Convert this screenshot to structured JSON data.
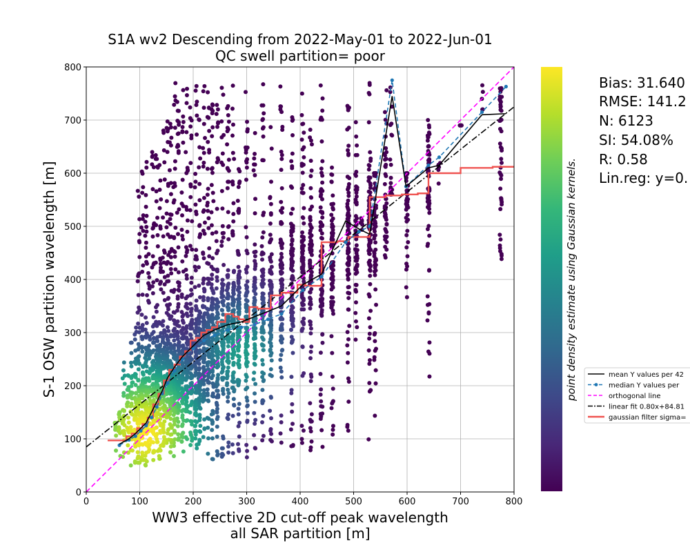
{
  "chart_data": {
    "type": "scatter",
    "title": "S1A wv2 Descending from 2022-May-01 to 2022-Jun-01",
    "subtitle": "QC swell partition= poor",
    "xlabel": "WW3 effective 2D cut-off peak wavelength",
    "xlabel2": "all SAR partition [m]",
    "ylabel": "S-1 OSW partition wavelength [m]",
    "xlim": [
      0,
      800
    ],
    "ylim": [
      0,
      800
    ],
    "xticks": [
      "0",
      "100",
      "200",
      "300",
      "400",
      "500",
      "600",
      "700",
      "800"
    ],
    "yticks": [
      "0",
      "100",
      "200",
      "300",
      "400",
      "500",
      "600",
      "700",
      "800"
    ],
    "grid": true,
    "colorbar_label": "point density estimate using Gaussian kernels.",
    "colormap": [
      "#440154",
      "#482878",
      "#3e4989",
      "#31688e",
      "#26828e",
      "#1f9e89",
      "#35b779",
      "#6ece58",
      "#b5de2b",
      "#fde725"
    ],
    "stats": [
      "Bias: 31.640",
      "RMSE: 141.2",
      "N: 6123",
      "SI: 54.08%",
      "R: 0.58",
      "Lin.reg: y=0."
    ],
    "legend_position": "right-outside",
    "legend": [
      {
        "label": "mean Y values per 42",
        "color": "#000000",
        "style": "solid"
      },
      {
        "label": "median Y values per",
        "color": "#1f77b4",
        "style": "dashed-marker"
      },
      {
        "label": "orthogonal line",
        "color": "#ff00ff",
        "style": "dashed"
      },
      {
        "label": "linear fit 0.80x+84.81",
        "color": "#000000",
        "style": "dashdot"
      },
      {
        "label": "gaussian filter sigma=",
        "color": "#ef5350",
        "style": "solid-thick"
      }
    ],
    "series": [
      {
        "name": "mean Y values per 42",
        "x": [
          62,
          80,
          92,
          102,
          112,
          122,
          132,
          142,
          152,
          165,
          180,
          200,
          220,
          240,
          265,
          290,
          315,
          340,
          365,
          405,
          440,
          485,
          510,
          530,
          572,
          598,
          640,
          660,
          740,
          785
        ],
        "y": [
          90,
          100,
          110,
          120,
          130,
          150,
          170,
          190,
          215,
          235,
          255,
          275,
          295,
          305,
          315,
          320,
          330,
          340,
          350,
          390,
          410,
          510,
          495,
          485,
          745,
          575,
          610,
          615,
          710,
          712
        ]
      },
      {
        "name": "median Y values per",
        "x": [
          62,
          80,
          92,
          102,
          112,
          122,
          132,
          142,
          152,
          165,
          180,
          200,
          220,
          240,
          265,
          290,
          315,
          340,
          365,
          405,
          440,
          485,
          510,
          530,
          572,
          598,
          640,
          660,
          740,
          785
        ],
        "y": [
          88,
          98,
          105,
          115,
          125,
          140,
          160,
          185,
          205,
          228,
          250,
          270,
          285,
          295,
          305,
          310,
          315,
          325,
          335,
          380,
          405,
          470,
          490,
          500,
          775,
          575,
          615,
          630,
          715,
          763
        ]
      },
      {
        "name": "gaussian filter sigma=",
        "x": [
          40,
          65,
          75,
          85,
          95,
          105,
          115,
          125,
          135,
          145,
          155,
          165,
          175,
          185,
          195,
          205,
          215,
          225,
          235,
          245,
          260,
          275,
          285,
          295,
          305,
          320,
          345,
          365,
          395,
          410,
          440,
          470,
          490,
          530,
          560,
          590,
          620,
          640,
          700,
          760,
          800
        ],
        "y": [
          97,
          97,
          105,
          110,
          120,
          128,
          140,
          165,
          185,
          210,
          230,
          240,
          255,
          265,
          285,
          290,
          300,
          305,
          310,
          320,
          335,
          330,
          325,
          320,
          348,
          345,
          370,
          375,
          390,
          388,
          470,
          472,
          480,
          555,
          558,
          560,
          562,
          600,
          610,
          612,
          613
        ]
      },
      {
        "name": "linear fit 0.80x+84.81",
        "x": [
          0,
          800
        ],
        "y": [
          84.81,
          724.81
        ]
      },
      {
        "name": "orthogonal line",
        "x": [
          0,
          800
        ],
        "y": [
          0,
          800
        ]
      }
    ],
    "scatter_density": {
      "column_x": [
        55,
        62,
        70,
        78,
        85,
        92,
        98,
        105,
        112,
        118,
        125,
        132,
        138,
        145,
        152,
        158,
        165,
        172,
        180,
        188,
        196,
        205,
        212,
        220,
        228,
        236,
        245,
        255,
        265,
        275,
        285,
        300,
        315,
        330,
        345,
        365,
        385,
        405,
        420,
        440,
        460,
        490,
        505,
        515,
        530,
        540,
        560,
        570,
        600,
        640,
        660,
        700,
        740,
        775
      ],
      "column_ymax": [
        130,
        150,
        260,
        230,
        290,
        310,
        600,
        620,
        640,
        470,
        640,
        640,
        620,
        700,
        700,
        720,
        770,
        760,
        770,
        770,
        730,
        770,
        710,
        770,
        760,
        730,
        770,
        770,
        770,
        770,
        750,
        770,
        720,
        770,
        700,
        770,
        760,
        750,
        690,
        770,
        680,
        770,
        700,
        520,
        770,
        600,
        770,
        770,
        600,
        700,
        620,
        690,
        770,
        760
      ],
      "column_ymin": [
        55,
        60,
        60,
        70,
        50,
        55,
        55,
        60,
        50,
        55,
        60,
        55,
        60,
        60,
        65,
        60,
        60,
        65,
        70,
        75,
        80,
        50,
        80,
        75,
        70,
        60,
        60,
        60,
        70,
        60,
        75,
        60,
        80,
        90,
        80,
        80,
        50,
        90,
        70,
        70,
        100,
        90,
        280,
        480,
        90,
        140,
        440,
        560,
        340,
        200,
        580,
        690,
        720,
        430
      ]
    }
  }
}
